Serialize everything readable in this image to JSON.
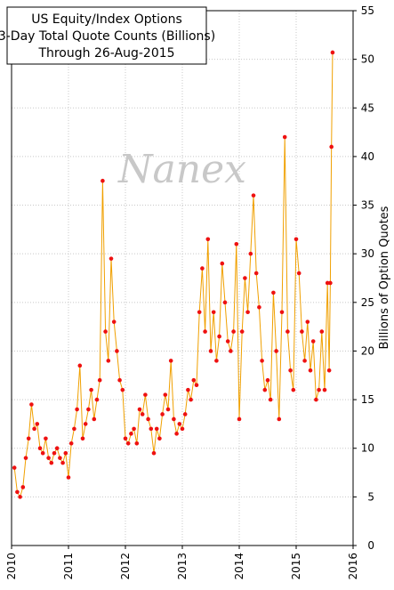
{
  "chart_data": {
    "type": "line",
    "title": [
      "US Equity/Index Options",
      "3-Day Total Quote Counts (Billions)",
      "Through 26-Aug-2015"
    ],
    "watermark": "Nanex",
    "y_label": "Billions of Option Quotes",
    "x": [
      2010.05,
      2010.1,
      2010.15,
      2010.2,
      2010.25,
      2010.3,
      2010.35,
      2010.4,
      2010.45,
      2010.5,
      2010.55,
      2010.6,
      2010.65,
      2010.7,
      2010.75,
      2010.8,
      2010.85,
      2010.9,
      2010.95,
      2011.0,
      2011.05,
      2011.1,
      2011.15,
      2011.2,
      2011.25,
      2011.3,
      2011.35,
      2011.4,
      2011.45,
      2011.5,
      2011.55,
      2011.6,
      2011.65,
      2011.7,
      2011.75,
      2011.8,
      2011.85,
      2011.9,
      2011.95,
      2012.0,
      2012.05,
      2012.1,
      2012.15,
      2012.2,
      2012.25,
      2012.3,
      2012.35,
      2012.4,
      2012.45,
      2012.5,
      2012.55,
      2012.6,
      2012.65,
      2012.7,
      2012.75,
      2012.8,
      2012.85,
      2012.9,
      2012.95,
      2013.0,
      2013.05,
      2013.1,
      2013.15,
      2013.2,
      2013.25,
      2013.3,
      2013.35,
      2013.4,
      2013.45,
      2013.5,
      2013.55,
      2013.6,
      2013.65,
      2013.7,
      2013.75,
      2013.8,
      2013.85,
      2013.9,
      2013.95,
      2014.0,
      2014.05,
      2014.1,
      2014.15,
      2014.2,
      2014.25,
      2014.3,
      2014.35,
      2014.4,
      2014.45,
      2014.5,
      2014.55,
      2014.6,
      2014.65,
      2014.7,
      2014.75,
      2014.8,
      2014.85,
      2014.9,
      2014.95,
      2015.0,
      2015.05,
      2015.1,
      2015.15,
      2015.2,
      2015.25,
      2015.3,
      2015.35,
      2015.4,
      2015.45,
      2015.5,
      2015.55,
      2015.58,
      2015.6,
      2015.62,
      2015.64
    ],
    "series": [
      {
        "color": "#f0a000",
        "marker_color": "#ee1111",
        "values": [
          8,
          5.5,
          5,
          6,
          9,
          11,
          14.5,
          12,
          12.5,
          10,
          9.5,
          11,
          9,
          8.5,
          9.5,
          10,
          9,
          8.5,
          9.5,
          7,
          10.5,
          12,
          14,
          18.5,
          11,
          12.5,
          14,
          16,
          13,
          15,
          17,
          37.5,
          22,
          19,
          29.5,
          23,
          20,
          17,
          16,
          11,
          10.5,
          11.5,
          12,
          10.5,
          14,
          13.5,
          15.5,
          13,
          12,
          9.5,
          12,
          11,
          13.5,
          15.5,
          14,
          19,
          13,
          11.5,
          12.5,
          12,
          13.5,
          16,
          15,
          17,
          16.5,
          24,
          28.5,
          22,
          31.5,
          20,
          24,
          19,
          21.5,
          29,
          25,
          21,
          20,
          22,
          31,
          13,
          22,
          27.5,
          24,
          30,
          36,
          28,
          24.5,
          19,
          16,
          17,
          15,
          26,
          20,
          13,
          24,
          42,
          22,
          18,
          16,
          31.5,
          28,
          22,
          19,
          23,
          18,
          21,
          15,
          16,
          22,
          16,
          27,
          18,
          27,
          41,
          50.7
        ]
      }
    ],
    "xlim": [
      2010,
      2016
    ],
    "xticks": [
      2010,
      2011,
      2012,
      2013,
      2014,
      2015,
      2016
    ],
    "ylim": [
      0,
      55
    ],
    "yticks": [
      0,
      5,
      10,
      15,
      20,
      25,
      30,
      35,
      40,
      45,
      50,
      55
    ],
    "grid": true
  }
}
